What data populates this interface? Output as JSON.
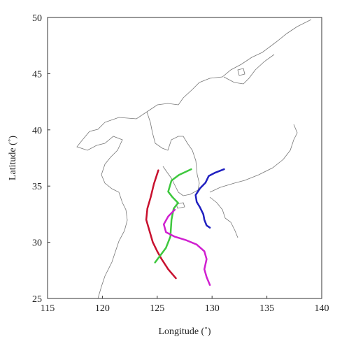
{
  "chart_data": {
    "type": "line",
    "xlabel": "Longitude (˚)",
    "ylabel": "Latitude (˚)",
    "xlim": [
      115,
      140
    ],
    "xticks": [
      115,
      120,
      125,
      130,
      135,
      140
    ],
    "ylim": [
      25,
      50
    ],
    "yticks": [
      25,
      30,
      35,
      40,
      45,
      50
    ],
    "series": [
      {
        "color": "#c8102e",
        "x": [
          125.1,
          124.7,
          124.4,
          124.1,
          124.0,
          124.3,
          124.6,
          125.0,
          125.4,
          126.0,
          126.7
        ],
        "values": [
          36.4,
          35.2,
          34.0,
          33.0,
          32.0,
          31.0,
          30.0,
          29.2,
          28.5,
          27.6,
          26.8
        ]
      },
      {
        "color": "#3ec83e",
        "x": [
          128.1,
          127.0,
          126.3,
          126.0,
          126.4,
          126.9,
          126.5,
          126.3,
          126.2,
          125.8,
          124.8
        ],
        "values": [
          36.5,
          36.0,
          35.5,
          34.5,
          34.0,
          33.5,
          33.0,
          32.0,
          30.5,
          29.5,
          28.2
        ]
      },
      {
        "color": "#d020d0",
        "x": [
          126.6,
          126.0,
          125.6,
          125.8,
          126.6,
          127.6,
          128.6,
          129.3,
          129.5,
          129.3,
          129.5,
          129.8
        ],
        "values": [
          32.9,
          32.3,
          31.6,
          30.9,
          30.5,
          30.2,
          29.8,
          29.2,
          28.5,
          27.6,
          26.9,
          26.2
        ]
      },
      {
        "color": "#2020c0",
        "x": [
          131.1,
          130.3,
          129.7,
          129.4,
          128.9,
          128.5,
          128.6,
          128.9,
          129.2,
          129.3,
          129.5,
          129.8
        ],
        "values": [
          36.5,
          36.2,
          35.9,
          35.3,
          34.8,
          34.2,
          33.6,
          33.1,
          32.5,
          32.0,
          31.5,
          31.3
        ]
      }
    ]
  }
}
